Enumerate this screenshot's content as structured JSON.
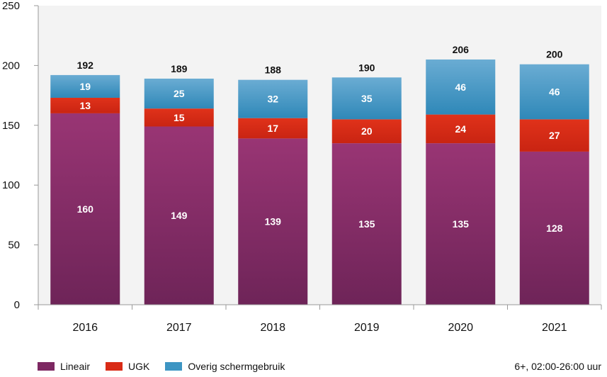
{
  "chart_data": {
    "type": "bar",
    "stacked": true,
    "categories": [
      "2016",
      "2017",
      "2018",
      "2019",
      "2020",
      "2021"
    ],
    "series": [
      {
        "name": "Lineair",
        "values": [
          160,
          149,
          139,
          135,
          135,
          128
        ],
        "color": "#8e2f6f"
      },
      {
        "name": "UGK",
        "values": [
          13,
          15,
          17,
          20,
          24,
          27
        ],
        "color": "#d92b16"
      },
      {
        "name": "Overig schermgebruik",
        "values": [
          19,
          25,
          32,
          35,
          46,
          46
        ],
        "color": "#3d95c3"
      }
    ],
    "totals": [
      192,
      189,
      188,
      190,
      206,
      200
    ],
    "ylim": [
      0,
      250
    ],
    "yticks": [
      0,
      50,
      100,
      150,
      200,
      250
    ],
    "grid": false,
    "legend_position": "bottom-left",
    "note": "6+, 02:00-26:00 uur"
  }
}
